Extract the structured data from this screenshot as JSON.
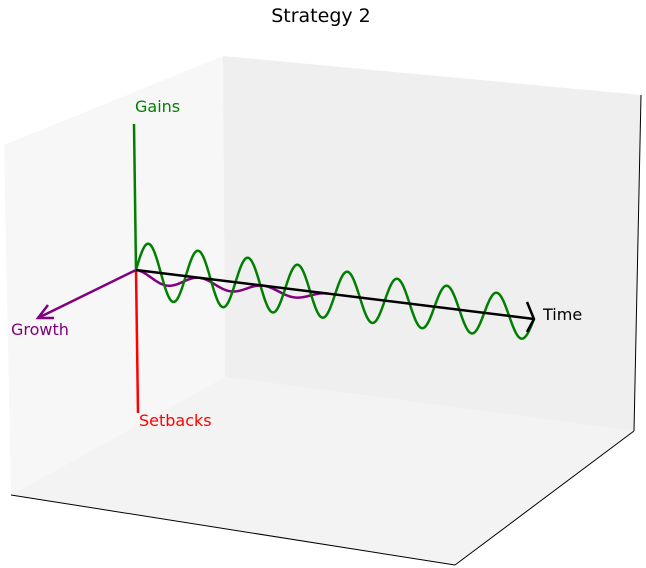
{
  "chart_data": {
    "type": "line",
    "projection": "3d",
    "title": "Strategy 2",
    "axes": {
      "time": {
        "label": "Time",
        "color": "#000000"
      },
      "gains": {
        "label": "Gains",
        "color": "#008000"
      },
      "setbacks": {
        "label": "Setbacks",
        "color": "#ff0000"
      },
      "growth": {
        "label": "Growth",
        "color": "#800080"
      }
    },
    "series": [
      {
        "color": "#008000",
        "cycles": 8,
        "amplitude_gain": 1.0,
        "decay": 0.25
      },
      {
        "color": "#800080",
        "cycles": 3,
        "amplitude_gain": 0.35
      }
    ],
    "grid": false,
    "legend": "none",
    "pane_colors": {
      "left": "#f7f7f7",
      "back": "#efefef",
      "floor": "#f3f3f3"
    }
  }
}
